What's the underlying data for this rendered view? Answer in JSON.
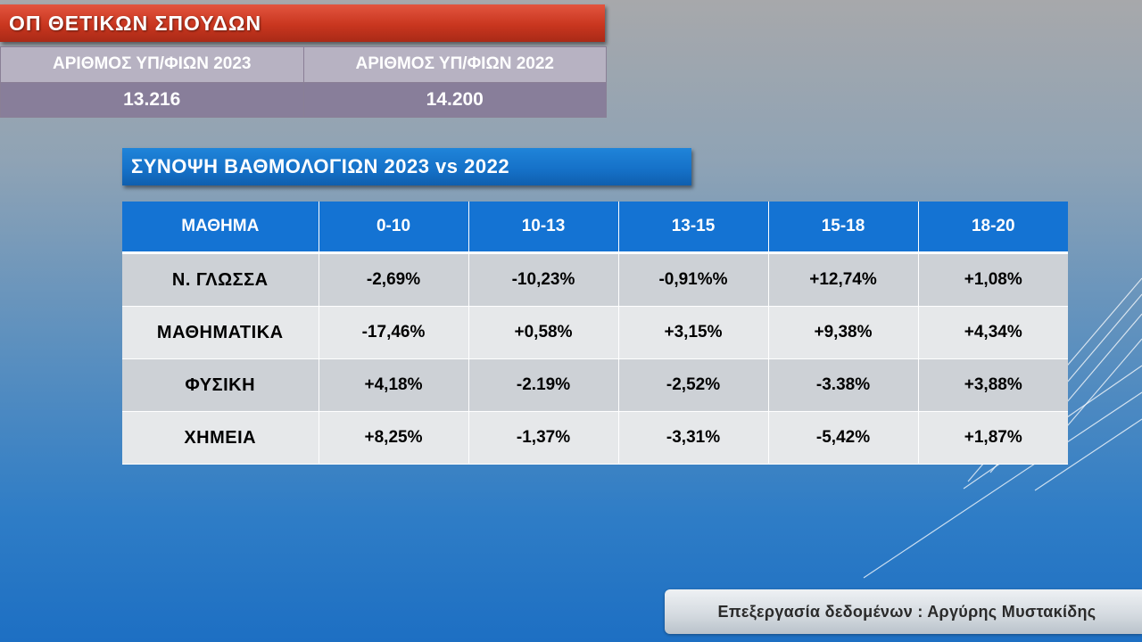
{
  "title_banner": "ΟΠ ΘΕΤΙΚΩΝ ΣΠΟΥΔΩΝ",
  "stats": {
    "headers": [
      "ΑΡΙΘΜΟΣ ΥΠ/ΦΙΩΝ 2023",
      "ΑΡΙΘΜΟΣ ΥΠ/ΦΙΩΝ 2022"
    ],
    "values": [
      "13.216",
      "14.200"
    ]
  },
  "summary_banner": "ΣΥΝΟΨΗ ΒΑΘΜΟΛΟΓΙΩΝ 2023 vs 2022",
  "grades_table": {
    "headers": [
      "ΜΑΘΗΜΑ",
      "0-10",
      "10-13",
      "13-15",
      "15-18",
      "18-20"
    ],
    "rows": [
      {
        "subject": "Ν. ΓΛΩΣΣΑ",
        "cells": [
          "-2,69%",
          "-10,23%",
          "-0,91%%",
          "+12,74%",
          "+1,08%"
        ]
      },
      {
        "subject": "ΜΑΘΗΜΑΤΙΚΑ",
        "cells": [
          "-17,46%",
          "+0,58%",
          "+3,15%",
          "+9,38%",
          "+4,34%"
        ]
      },
      {
        "subject": "ΦΥΣΙΚΗ",
        "cells": [
          "+4,18%",
          "-2.19%",
          "-2,52%",
          "-3.38%",
          "+3,88%"
        ]
      },
      {
        "subject": "ΧΗΜΕΙΑ",
        "cells": [
          "+8,25%",
          "-1,37%",
          "-3,31%",
          "-5,42%",
          "+1,87%"
        ]
      }
    ]
  },
  "credit": "Επεξεργασία δεδομένων : Αργύρης Μυστακίδης",
  "colors": {
    "title_banner": "#c9361f",
    "summary_banner": "#1570c7",
    "table_header": "#1473d3",
    "row_odd": "#cdd1d6",
    "row_even": "#e6e8ea"
  }
}
